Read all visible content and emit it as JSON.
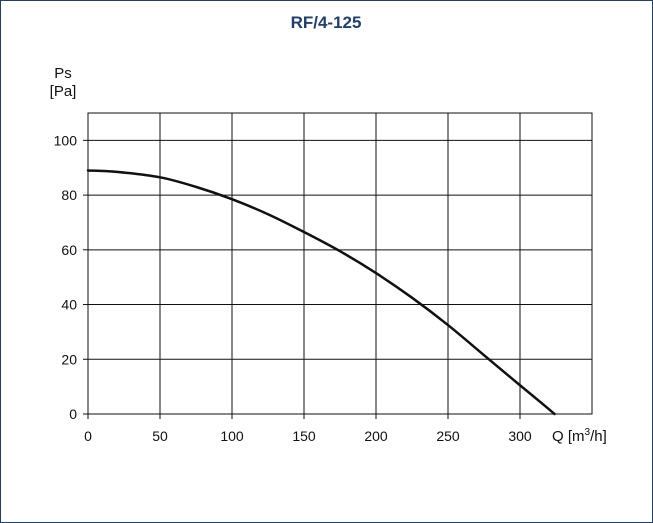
{
  "chart_data": {
    "type": "line",
    "title": "RF/4-125",
    "ylabel": "Ps",
    "ylabel_unit": "[Pa]",
    "xlabel_prefix": "Q [m",
    "xlabel_sup": "3",
    "xlabel_suffix": "/h]",
    "xlim": [
      0,
      350
    ],
    "ylim": [
      0,
      110
    ],
    "xticks": [
      0,
      50,
      100,
      150,
      200,
      250,
      300
    ],
    "yticks": [
      0,
      20,
      40,
      60,
      80,
      100
    ],
    "grid": true,
    "series": [
      {
        "x": [
          0,
          20,
          50,
          75,
          100,
          125,
          150,
          175,
          200,
          225,
          250,
          275,
          300,
          315,
          324
        ],
        "y": [
          89,
          88.5,
          86.5,
          83,
          78.5,
          73,
          66.5,
          59.5,
          51.5,
          42.5,
          32.5,
          21.5,
          10.5,
          4,
          0
        ]
      }
    ],
    "colors": {
      "line": "#111111",
      "grid": "#111111",
      "title": "#1f3f73",
      "frame": "#1f3f73"
    }
  }
}
